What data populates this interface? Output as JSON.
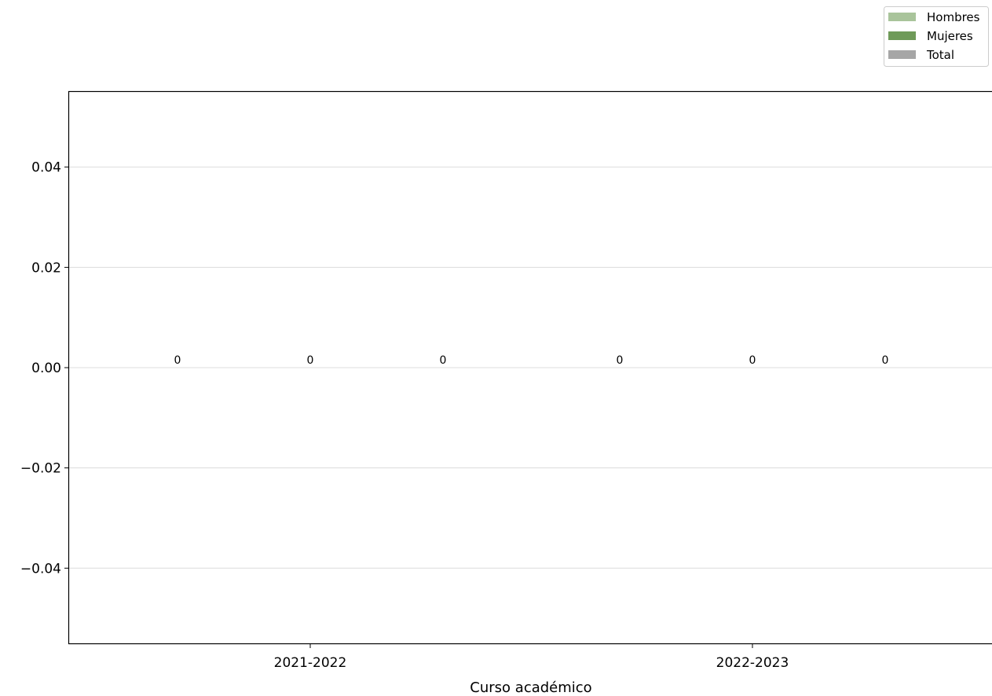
{
  "chart_data": {
    "type": "bar",
    "categories": [
      "2021-2022",
      "2022-2023"
    ],
    "series": [
      {
        "name": "Hombres",
        "values": [
          0,
          0
        ],
        "color": "#a9c49b"
      },
      {
        "name": "Mujeres",
        "values": [
          0,
          0
        ],
        "color": "#6f9a59"
      },
      {
        "name": "Total",
        "values": [
          0,
          0
        ],
        "color": "#a6a6a6"
      }
    ],
    "data_labels": [
      "0",
      "0",
      "0",
      "0",
      "0",
      "0"
    ],
    "xlabel": "Curso académico",
    "ylabel": "",
    "ylim": [
      -0.055,
      0.055
    ],
    "yticks": [
      -0.04,
      -0.02,
      0.0,
      0.02,
      0.04
    ],
    "ytick_labels": [
      "−0.04",
      "−0.02",
      "0.00",
      "0.02",
      "0.04"
    ],
    "grid": "horizontal",
    "legend_position": "top-right"
  }
}
